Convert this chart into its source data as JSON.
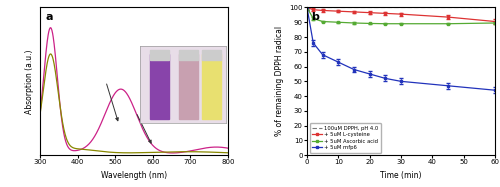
{
  "panel_a": {
    "xlabel": "Wavelength (nm)",
    "ylabel": "Absorption (a.u.)",
    "xlim": [
      300,
      800
    ],
    "purple_color": "#cc2288",
    "yellow_color": "#888800"
  },
  "panel_b": {
    "xlabel": "Time (min)",
    "ylabel": "% of remaining DPPH radical",
    "xlim": [
      0,
      60
    ],
    "ylim": [
      0,
      100
    ],
    "yticks": [
      0,
      10,
      20,
      30,
      40,
      50,
      60,
      70,
      80,
      90,
      100
    ],
    "xticks": [
      0,
      10,
      20,
      30,
      40,
      50,
      60
    ],
    "control_color": "#777777",
    "cysteine_color": "#dd3333",
    "ascorbic_color": "#55aa33",
    "mfp6_color": "#2233bb",
    "time_points": [
      0,
      2,
      5,
      10,
      15,
      20,
      25,
      30,
      45,
      60
    ],
    "control": [
      100,
      100,
      100,
      100,
      100,
      100,
      100,
      100,
      100,
      100
    ],
    "cysteine": [
      100,
      98.5,
      98.0,
      97.5,
      97.0,
      96.5,
      96.0,
      95.5,
      93.5,
      90.5
    ],
    "ascorbic": [
      100,
      92.5,
      90.5,
      90.0,
      89.5,
      89.2,
      89.0,
      89.0,
      89.0,
      89.5
    ],
    "mfp6": [
      100,
      76,
      68,
      63,
      58,
      55,
      52,
      50,
      47,
      44
    ],
    "err_cysteine": [
      1.5,
      1.2,
      1.0,
      0.8,
      0.8,
      0.8,
      0.8,
      1.0,
      1.2,
      1.5
    ],
    "err_ascorbic": [
      1.0,
      0.8,
      0.5,
      0.4,
      0.4,
      0.4,
      0.4,
      0.4,
      0.4,
      0.5
    ],
    "err_mfp6": [
      1.5,
      2.0,
      2.0,
      2.0,
      2.0,
      2.0,
      2.0,
      2.0,
      2.0,
      2.0
    ],
    "legend_labels": [
      "100uM DPPH, pH 4.0",
      "+ 5uM L-cysteine",
      "+ 5uM Ascorbic acid",
      "+ 5uM mfp6"
    ]
  }
}
